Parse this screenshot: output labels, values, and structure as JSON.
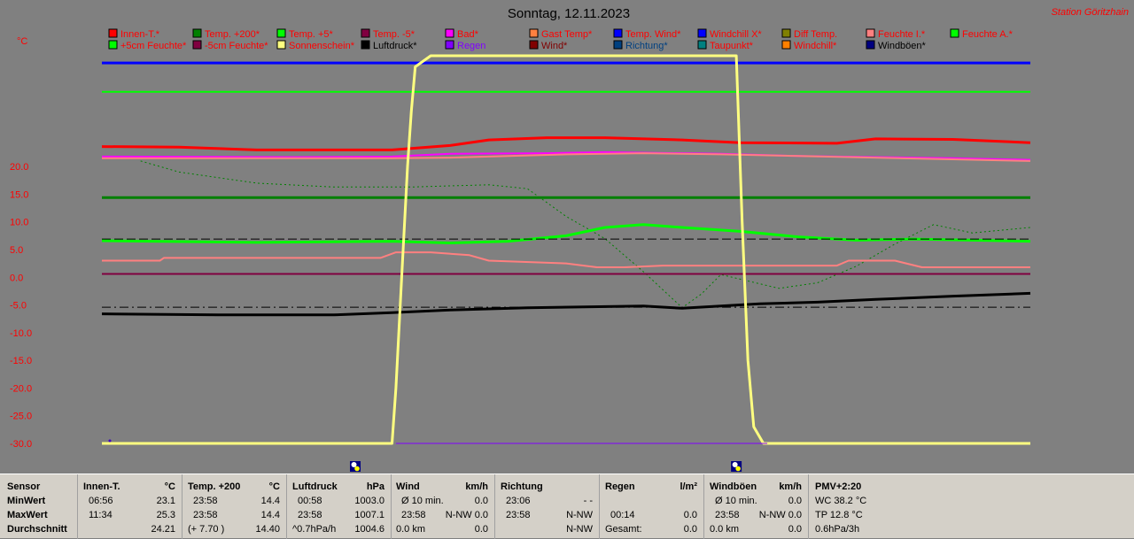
{
  "title": "Sonntag, 12.11.2023",
  "station": "Station Göritzhain",
  "unit_label": "°C",
  "legend": [
    {
      "label": "Innen-T.*",
      "color": "#ff0000",
      "text_color": "#ff0000"
    },
    {
      "label": "Temp. +200*",
      "color": "#008000",
      "text_color": "#ff0000"
    },
    {
      "label": "Temp. +5*",
      "color": "#00ff00",
      "text_color": "#ff0000"
    },
    {
      "label": "Temp. -5*",
      "color": "#800040",
      "text_color": "#ff0000"
    },
    {
      "label": "Bad*",
      "color": "#ff00ff",
      "text_color": "#ff0000"
    },
    {
      "label": "Gast Temp*",
      "color": "#ff8040",
      "text_color": "#ff0000"
    },
    {
      "label": "Temp. Wind*",
      "color": "#0000ff",
      "text_color": "#ff0000"
    },
    {
      "label": "Windchill X*",
      "color": "#0000ff",
      "text_color": "#ff0000"
    },
    {
      "label": "Diff Temp.",
      "color": "#808000",
      "text_color": "#ff0000"
    },
    {
      "label": "Feuchte I.*",
      "color": "#ff8080",
      "text_color": "#ff0000"
    },
    {
      "label": "Feuchte A.*",
      "color": "#00ff00",
      "text_color": "#ff0000"
    },
    {
      "label": "+5cm Feuchte*",
      "color": "#00ff00",
      "text_color": "#ff0000"
    },
    {
      "label": "-5cm Feuchte*",
      "color": "#800040",
      "text_color": "#ff0000"
    },
    {
      "label": "Sonnenschein*",
      "color": "#ffff80",
      "text_color": "#ff0000"
    },
    {
      "label": "Luftdruck*",
      "color": "#000000",
      "text_color": "#000000"
    },
    {
      "label": "Regen",
      "color": "#8000ff",
      "text_color": "#8000ff"
    },
    {
      "label": "Wind*",
      "color": "#800000",
      "text_color": "#800000"
    },
    {
      "label": "Richtung*",
      "color": "#004080",
      "text_color": "#004080"
    },
    {
      "label": "Taupunkt*",
      "color": "#008080",
      "text_color": "#ff0000"
    },
    {
      "label": "Windchill*",
      "color": "#ff8000",
      "text_color": "#ff0000"
    },
    {
      "label": "Windböen*",
      "color": "#000080",
      "text_color": "#000000"
    }
  ],
  "chart_data": {
    "type": "line",
    "title": "Sonntag, 12.11.2023",
    "ylabel": "°C",
    "ylim": [
      -30,
      40
    ],
    "yticks": [
      "20.0",
      "15.0",
      "10.0",
      "5.0",
      "0.0",
      "-5.0",
      "-10.0",
      "-15.0",
      "-20.0",
      "-25.0",
      "-30.0"
    ],
    "x_range_hours": [
      0,
      24
    ],
    "grid": false,
    "series": [
      {
        "name": "Temp. Wind*",
        "color": "#0000ff",
        "width": 3,
        "x": [
          0,
          24
        ],
        "y": [
          38.7,
          38.7
        ]
      },
      {
        "name": "Feuchte A.*",
        "color": "#00ff00",
        "width": 2,
        "x": [
          0,
          24
        ],
        "y": [
          33.5,
          33.5
        ]
      },
      {
        "name": "Innen-T.*",
        "color": "#ff0000",
        "width": 3,
        "x": [
          0,
          2,
          4,
          7.5,
          9,
          10,
          11.5,
          13,
          15,
          16.5,
          19,
          20,
          22,
          24
        ],
        "y": [
          23.6,
          23.5,
          23.0,
          23.0,
          23.8,
          24.8,
          25.2,
          25.2,
          24.8,
          24.3,
          24.2,
          25.0,
          24.9,
          24.3
        ]
      },
      {
        "name": "Bad*",
        "color": "#ff00ff",
        "width": 2,
        "x": [
          0,
          5,
          7.5,
          9,
          11.5,
          13,
          16,
          18,
          20,
          22,
          24
        ],
        "y": [
          21.8,
          21.7,
          21.8,
          22.3,
          22.4,
          22.6,
          22.3,
          21.9,
          21.7,
          21.5,
          21.2
        ]
      },
      {
        "name": "Feuchte I.*",
        "color": "#ff8080",
        "width": 2,
        "x": [
          0,
          7.5,
          9,
          12,
          14,
          16,
          18,
          20,
          22,
          24
        ],
        "y": [
          21.5,
          21.5,
          21.6,
          22.2,
          22.4,
          22.2,
          21.9,
          21.6,
          21.3,
          21.0
        ]
      },
      {
        "name": "Temp. +200*",
        "color": "#008000",
        "width": 3,
        "x": [
          0,
          24
        ],
        "y": [
          14.4,
          14.4
        ]
      },
      {
        "name": "Taupunkt*",
        "color": "#008000",
        "width": 1,
        "dash": "2,3",
        "x": [
          1.0,
          2.0,
          3.0,
          4.0,
          6.0,
          8.0,
          9.0,
          10.0,
          11.0,
          11.5,
          12.0,
          13.0,
          14.0,
          15.0,
          15.5,
          16.0,
          17.5,
          18.5,
          19.5,
          20.5,
          21.5,
          22.5,
          24.0
        ],
        "y": [
          21.0,
          19.0,
          18.0,
          17.0,
          16.3,
          16.3,
          16.5,
          16.7,
          16.0,
          13.5,
          11.0,
          7.0,
          1.0,
          -5.5,
          -3.0,
          0.5,
          -2.0,
          -1.0,
          2.0,
          6.0,
          9.5,
          8.0,
          9.0
        ]
      },
      {
        "name": "Temp. +5*",
        "color": "#00ff00",
        "width": 3,
        "x": [
          0,
          4,
          7.5,
          9,
          10.5,
          12,
          13,
          14,
          15,
          16.5,
          18,
          19.5,
          21,
          22.5,
          24
        ],
        "y": [
          6.6,
          6.3,
          6.5,
          6.2,
          6.5,
          7.5,
          9.0,
          9.5,
          9.0,
          8.3,
          7.3,
          6.7,
          6.9,
          6.7,
          6.5
        ]
      },
      {
        "name": "Diff Temp.",
        "color": "#000000",
        "width": 1,
        "dash": "10,4",
        "x": [
          0,
          24
        ],
        "y": [
          6.9,
          6.9
        ]
      },
      {
        "name": "Feuchte I. (unten)",
        "color": "#ff8080",
        "width": 2,
        "x": [
          0,
          1.5,
          1.6,
          7.2,
          7.6,
          8.5,
          9.5,
          10,
          12,
          12.8,
          13.5,
          14.5,
          17,
          19,
          19.3,
          20.5,
          21.2,
          24
        ],
        "y": [
          3.0,
          3.0,
          3.5,
          3.5,
          4.5,
          4.5,
          4.0,
          3.0,
          2.5,
          1.8,
          1.8,
          2.1,
          2.1,
          2.1,
          3.0,
          3.0,
          1.8,
          1.8
        ]
      },
      {
        "name": "Temp. -5*",
        "color": "#800040",
        "width": 2,
        "x": [
          0,
          24
        ],
        "y": [
          0.6,
          0.6
        ]
      },
      {
        "name": "Windchill X*",
        "color": "#000000",
        "width": 1,
        "dash": "10,4,2,4",
        "x": [
          0,
          24
        ],
        "y": [
          -5.4,
          -5.4
        ]
      },
      {
        "name": "Luftdruck*",
        "color": "#000000",
        "width": 3,
        "x": [
          0,
          3,
          6,
          7.5,
          9,
          11,
          14,
          15,
          17,
          18.5,
          20,
          22,
          24
        ],
        "y": [
          -6.6,
          -6.8,
          -6.8,
          -6.4,
          -5.9,
          -5.5,
          -5.2,
          -5.6,
          -4.8,
          -4.5,
          -4.0,
          -3.4,
          -2.9
        ]
      },
      {
        "name": "Sonnenschein*",
        "color": "#ffff80",
        "width": 3,
        "x": [
          0,
          7.5,
          7.6,
          7.75,
          7.9,
          8.0,
          8.1,
          8.5,
          16.4,
          16.45,
          16.55,
          16.7,
          16.85,
          17.1,
          24
        ],
        "y": [
          -30,
          -30,
          -20,
          0,
          20,
          30,
          38,
          40,
          40,
          30,
          10,
          -15,
          -27,
          -30,
          -30
        ]
      },
      {
        "name": "Regen",
        "color": "#8000ff",
        "width": 1,
        "x": [
          7.6,
          17.2
        ],
        "y": [
          -30,
          -30
        ]
      }
    ]
  },
  "markers": [
    {
      "label": "sunrise-icon",
      "hour": 6.55
    },
    {
      "label": "sunset-icon",
      "hour": 16.4
    }
  ],
  "table": {
    "row_labels": {
      "header": "Sensor",
      "min": "MinWert",
      "max": "MaxWert",
      "avg": "Durchschnitt"
    },
    "columns": [
      {
        "name": "Innen-T.",
        "unit": "°C",
        "min_time": "06:56",
        "min_val": "23.1",
        "max_time": "11:34",
        "max_val": "25.3",
        "avg_extra": "",
        "avg_val": "24.21"
      },
      {
        "name": "Temp. +200",
        "unit": "°C",
        "min_time": "23:58",
        "min_val": "14.4",
        "max_time": "23:58",
        "max_val": "14.4",
        "avg_extra": "(+ 7.70 )",
        "avg_val": "14.40"
      },
      {
        "name": "Luftdruck",
        "unit": "hPa",
        "min_time": "00:58",
        "min_val": "1003.0",
        "max_time": "23:58",
        "max_val": "1007.1",
        "avg_extra": "^0.7hPa/h",
        "avg_val": "1004.6"
      },
      {
        "name": "Wind",
        "unit": "km/h",
        "min_time": "Ø 10 min.",
        "min_val": "0.0",
        "max_time": "23:58",
        "max_val": "N-NW 0.0",
        "avg_extra": "0.0 km",
        "avg_val": "0.0"
      },
      {
        "name": "Richtung",
        "unit": "",
        "min_time": "23:06",
        "min_val": "- -",
        "max_time": "23:58",
        "max_val": "N-NW",
        "avg_extra": "",
        "avg_val": "N-NW"
      },
      {
        "name": "Regen",
        "unit": "l/m²",
        "min_time": "",
        "min_val": "",
        "max_time": "00:14",
        "max_val": "0.0",
        "avg_extra": "Gesamt:",
        "avg_val": "0.0"
      },
      {
        "name": "Windböen",
        "unit": "km/h",
        "min_time": "Ø 10 min.",
        "min_val": "0.0",
        "max_time": "23:58",
        "max_val": "N-NW 0.0",
        "avg_extra": "0.0 km",
        "avg_val": "0.0"
      }
    ],
    "pmv": {
      "title": "PMV+2:20",
      "line1": "WC 38.2 °C",
      "line2": "TP 12.8 °C",
      "line3": "0.6hPa/3h"
    }
  }
}
